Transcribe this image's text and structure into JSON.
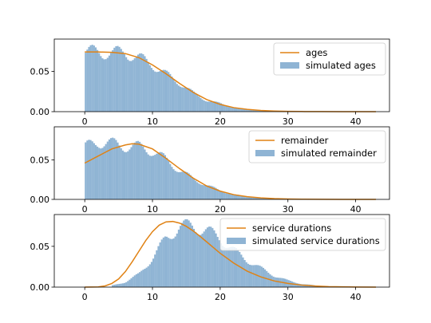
{
  "figure": {
    "background": "#ffffff",
    "hist_color": "#7ba7cc",
    "line_color": "#e08214"
  },
  "chart_data": [
    {
      "type": "bar",
      "panel": "ages",
      "xlim": [
        -4.5,
        45
      ],
      "ylim": [
        0,
        0.09
      ],
      "xticks": [
        0,
        10,
        20,
        30,
        40
      ],
      "xticklabels": [
        "0",
        "10",
        "20",
        "30",
        "40"
      ],
      "yticks": [
        0,
        0.05
      ],
      "yticklabels": [
        "0.00",
        "0.05"
      ],
      "grid": false,
      "legend_position": "top-right",
      "series": [
        {
          "name": "ages",
          "kind": "line",
          "x": [
            0,
            2,
            4,
            6,
            8,
            10,
            12,
            14,
            16,
            18,
            20,
            22,
            24,
            26,
            28,
            30,
            32,
            35,
            38,
            40,
            43
          ],
          "y": [
            0.074,
            0.074,
            0.0735,
            0.072,
            0.067,
            0.058,
            0.047,
            0.035,
            0.024,
            0.015,
            0.009,
            0.005,
            0.0028,
            0.0015,
            0.0008,
            0.0004,
            0.0002,
            0.0001,
            3e-05,
            1e-05,
            0
          ]
        },
        {
          "name": "simulated ages",
          "kind": "histogram",
          "x": [
            0,
            2,
            4,
            6,
            8,
            10,
            12,
            14,
            16,
            18,
            20,
            22,
            24,
            26,
            28,
            30,
            32,
            35,
            38,
            40
          ],
          "y": [
            0.073,
            0.075,
            0.072,
            0.074,
            0.066,
            0.059,
            0.046,
            0.036,
            0.023,
            0.014,
            0.01,
            0.005,
            0.003,
            0.0015,
            0.001,
            0.0005,
            0.0003,
            0.0001,
            5e-05,
            0
          ]
        }
      ]
    },
    {
      "type": "bar",
      "panel": "remainder",
      "xlim": [
        -4.5,
        45
      ],
      "ylim": [
        0,
        0.092
      ],
      "xticks": [
        0,
        10,
        20,
        30,
        40
      ],
      "xticklabels": [
        "0",
        "10",
        "20",
        "30",
        "40"
      ],
      "yticks": [
        0,
        0.05
      ],
      "yticklabels": [
        "0.00",
        "0.05"
      ],
      "grid": false,
      "legend_position": "top-right",
      "series": [
        {
          "name": "remainder",
          "kind": "line",
          "x": [
            0,
            2,
            4,
            6,
            7,
            8,
            10,
            12,
            14,
            16,
            18,
            20,
            22,
            24,
            26,
            28,
            30,
            32,
            35,
            38,
            40,
            43
          ],
          "y": [
            0.046,
            0.055,
            0.064,
            0.069,
            0.0705,
            0.07,
            0.064,
            0.052,
            0.039,
            0.027,
            0.017,
            0.0105,
            0.006,
            0.0034,
            0.0019,
            0.001,
            0.0005,
            0.00025,
            0.0001,
            3e-05,
            1e-05,
            0
          ]
        },
        {
          "name": "simulated remainder",
          "kind": "histogram",
          "x": [
            0,
            2,
            4,
            6,
            8,
            10,
            12,
            14,
            16,
            18,
            20,
            22,
            24,
            26,
            28,
            30,
            32,
            35,
            38,
            40
          ],
          "y": [
            0.065,
            0.074,
            0.07,
            0.068,
            0.066,
            0.062,
            0.05,
            0.037,
            0.026,
            0.018,
            0.011,
            0.006,
            0.0035,
            0.002,
            0.001,
            0.0006,
            0.0003,
            0.0001,
            5e-05,
            0
          ]
        }
      ]
    },
    {
      "type": "bar",
      "panel": "service durations",
      "xlim": [
        -4.5,
        45
      ],
      "ylim": [
        0,
        0.089
      ],
      "xticks": [
        0,
        10,
        20,
        30,
        40
      ],
      "xticklabels": [
        "0",
        "10",
        "20",
        "30",
        "40"
      ],
      "yticks": [
        0,
        0.05
      ],
      "yticklabels": [
        "0.00",
        "0.05"
      ],
      "grid": false,
      "legend_position": "top-right",
      "series": [
        {
          "name": "service durations",
          "kind": "line",
          "x": [
            0,
            2,
            3,
            4,
            5,
            6,
            7,
            8,
            9,
            10,
            11,
            12,
            13,
            14,
            15,
            16,
            17,
            18,
            19,
            20,
            22,
            24,
            26,
            28,
            30,
            32,
            34,
            36,
            40,
            43
          ],
          "y": [
            0,
            0.0003,
            0.0015,
            0.0045,
            0.01,
            0.019,
            0.031,
            0.044,
            0.057,
            0.068,
            0.076,
            0.08,
            0.0805,
            0.0785,
            0.0745,
            0.069,
            0.0625,
            0.0555,
            0.0485,
            0.0415,
            0.0295,
            0.0195,
            0.0125,
            0.0075,
            0.0045,
            0.0025,
            0.0013,
            0.0006,
            0.0001,
            0
          ]
        },
        {
          "name": "simulated service durations",
          "kind": "histogram",
          "x": [
            4,
            6,
            8,
            10,
            12,
            14,
            16,
            18,
            20,
            22,
            24,
            26,
            28,
            30,
            32,
            34,
            36,
            38
          ],
          "y": [
            0.002,
            0.006,
            0.016,
            0.035,
            0.06,
            0.074,
            0.075,
            0.069,
            0.06,
            0.045,
            0.033,
            0.023,
            0.014,
            0.008,
            0.004,
            0.002,
            0.001,
            0.0005
          ]
        }
      ]
    }
  ]
}
